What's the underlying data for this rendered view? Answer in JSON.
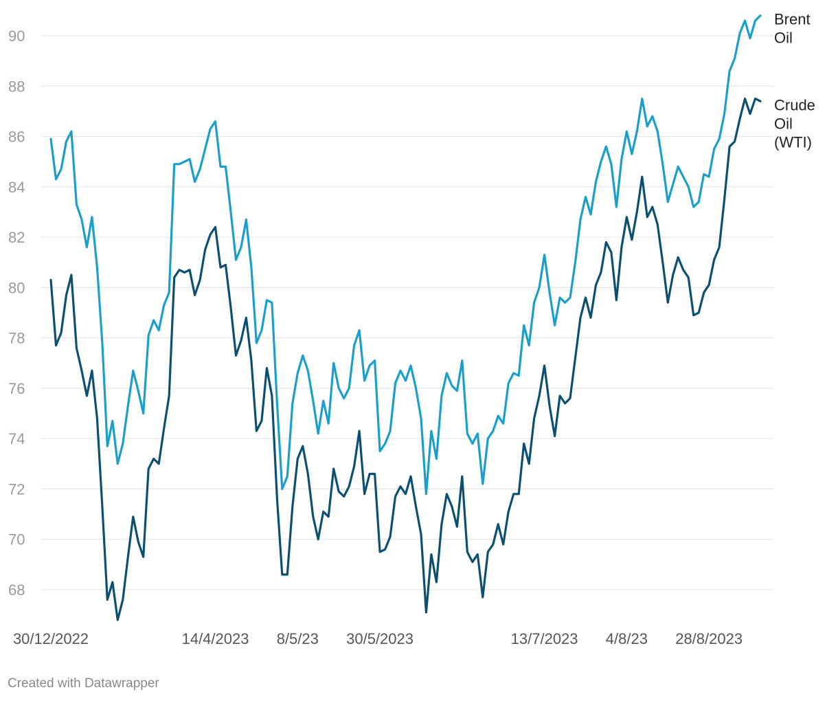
{
  "credit": "Created with Datawrapper",
  "chart_data": {
    "type": "line",
    "title": "",
    "xlabel": "",
    "ylabel": "",
    "ylim": [
      66.8,
      91.2
    ],
    "yticks": [
      68,
      70,
      72,
      74,
      76,
      78,
      80,
      82,
      84,
      86,
      88,
      90
    ],
    "grid": true,
    "legend": "right, inline at line ends",
    "x_tick_labels": [
      {
        "label": "30/12/2022",
        "index": 0
      },
      {
        "label": "14/4/2023",
        "index": 32
      },
      {
        "label": "8/5/23",
        "index": 48
      },
      {
        "label": "30/5/2023",
        "index": 64
      },
      {
        "label": "13/7/2023",
        "index": 96
      },
      {
        "label": "4/8/23",
        "index": 112
      },
      {
        "label": "28/8/2023",
        "index": 128
      }
    ],
    "series": [
      {
        "name": "Brent Oil",
        "label_lines": [
          "Brent",
          "Oil"
        ],
        "color": "#1a9fcb",
        "values": [
          85.9,
          84.3,
          84.7,
          85.8,
          86.2,
          83.3,
          82.7,
          81.6,
          82.8,
          80.8,
          77.8,
          73.7,
          74.7,
          73.0,
          73.8,
          75.3,
          76.7,
          75.9,
          75.0,
          78.1,
          78.7,
          78.3,
          79.3,
          79.8,
          84.9,
          84.9,
          85.0,
          85.1,
          84.2,
          84.7,
          85.5,
          86.3,
          86.6,
          84.8,
          84.8,
          83.0,
          81.1,
          81.6,
          82.7,
          80.8,
          77.8,
          78.3,
          79.5,
          79.4,
          75.4,
          72.0,
          72.5,
          75.4,
          76.6,
          77.3,
          76.7,
          75.5,
          74.2,
          75.5,
          74.6,
          77.0,
          76.0,
          75.6,
          76.0,
          77.7,
          78.3,
          76.3,
          76.9,
          77.1,
          73.5,
          73.8,
          74.3,
          76.2,
          76.7,
          76.3,
          76.9,
          76.0,
          74.8,
          71.8,
          74.3,
          73.2,
          75.7,
          76.6,
          76.1,
          75.9,
          77.1,
          74.2,
          73.8,
          74.2,
          72.2,
          74.0,
          74.3,
          74.9,
          74.6,
          76.2,
          76.6,
          76.5,
          78.5,
          77.7,
          79.4,
          80.0,
          81.3,
          79.8,
          78.5,
          79.6,
          79.4,
          79.6,
          81.0,
          82.7,
          83.6,
          82.9,
          84.2,
          85.0,
          85.6,
          84.9,
          83.2,
          85.1,
          86.2,
          85.3,
          86.2,
          87.5,
          86.4,
          86.8,
          86.2,
          84.9,
          83.4,
          84.1,
          84.8,
          84.4,
          84.0,
          83.2,
          83.4,
          84.5,
          84.4,
          85.5,
          85.9,
          86.9,
          88.6,
          89.1,
          90.1,
          90.6,
          89.9,
          90.6,
          90.8
        ]
      },
      {
        "name": "Crude Oil (WTI)",
        "label_lines": [
          "Crude",
          "Oil",
          "(WTI)"
        ],
        "color": "#0b4f71",
        "values": [
          80.3,
          77.7,
          78.2,
          79.7,
          80.5,
          77.6,
          76.7,
          75.7,
          76.7,
          74.8,
          71.3,
          67.6,
          68.3,
          66.8,
          67.6,
          69.3,
          70.9,
          69.9,
          69.3,
          72.8,
          73.2,
          73.0,
          74.4,
          75.7,
          80.4,
          80.7,
          80.6,
          80.7,
          79.7,
          80.3,
          81.5,
          82.1,
          82.4,
          80.8,
          80.9,
          79.2,
          77.3,
          77.9,
          78.8,
          77.1,
          74.3,
          74.7,
          76.8,
          75.7,
          71.6,
          68.6,
          68.6,
          71.3,
          73.2,
          73.7,
          72.6,
          70.9,
          70.0,
          71.1,
          70.9,
          72.8,
          71.9,
          71.7,
          72.1,
          72.9,
          74.3,
          71.8,
          72.6,
          72.6,
          69.5,
          69.6,
          70.1,
          71.7,
          72.1,
          71.8,
          72.5,
          71.3,
          70.2,
          67.1,
          69.4,
          68.3,
          70.6,
          71.8,
          71.3,
          70.5,
          72.5,
          69.5,
          69.1,
          69.4,
          67.7,
          69.5,
          69.8,
          70.6,
          69.8,
          71.1,
          71.8,
          71.8,
          73.8,
          73.0,
          74.8,
          75.7,
          76.9,
          75.3,
          74.1,
          75.7,
          75.4,
          75.6,
          77.2,
          78.8,
          79.6,
          78.8,
          80.1,
          80.6,
          81.8,
          81.4,
          79.5,
          81.6,
          82.8,
          81.9,
          83.0,
          84.4,
          82.8,
          83.2,
          82.5,
          81.0,
          79.4,
          80.5,
          81.2,
          80.7,
          80.4,
          78.9,
          79.0,
          79.8,
          80.1,
          81.1,
          81.6,
          83.5,
          85.6,
          85.8,
          86.7,
          87.5,
          86.9,
          87.5,
          87.4
        ]
      }
    ]
  }
}
